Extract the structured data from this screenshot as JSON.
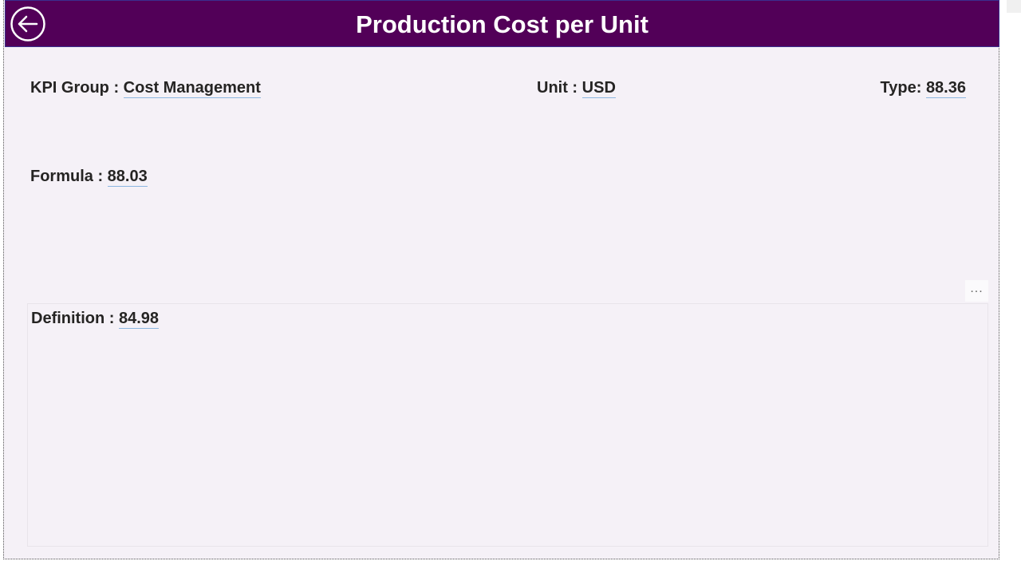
{
  "header": {
    "title": "Production Cost per Unit",
    "back_icon": "arrow-left-circle-icon",
    "background": "#520058"
  },
  "fields": {
    "kpi_group": {
      "label": "KPI Group : ",
      "value": "Cost Management"
    },
    "unit": {
      "label": "Unit : ",
      "value": "USD"
    },
    "type": {
      "label": "Type: ",
      "value": "88.36"
    },
    "formula": {
      "label": "Formula : ",
      "value": "88.03"
    },
    "definition": {
      "label": "Definition : ",
      "value": "84.98"
    }
  },
  "more_options": {
    "label": "...",
    "icon": "more-options-icon"
  }
}
